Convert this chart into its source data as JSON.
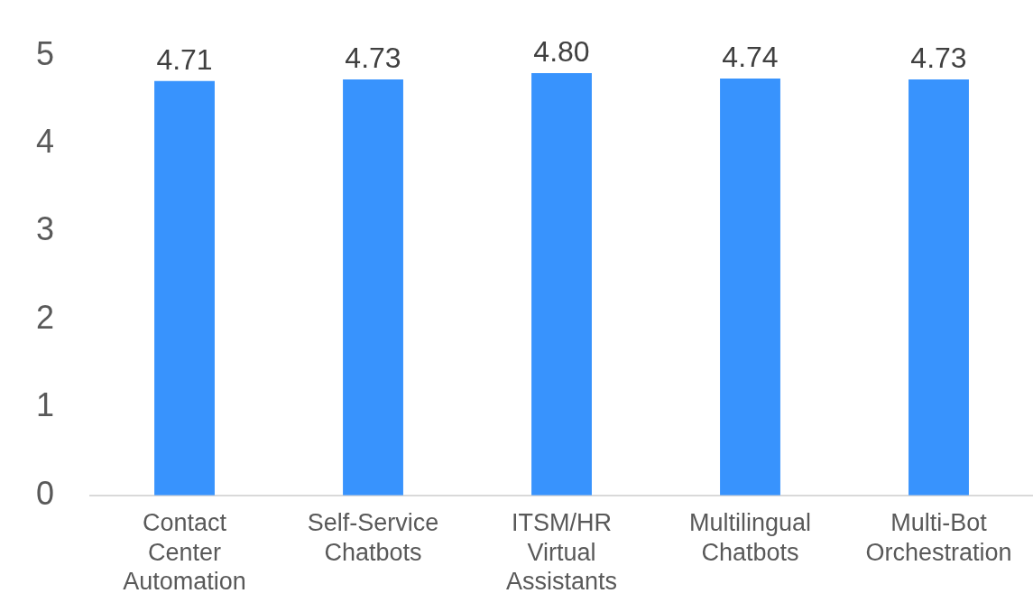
{
  "chart_data": {
    "type": "bar",
    "categories": [
      "Contact Center Automation",
      "Self-Service Chatbots",
      "ITSM/HR Virtual Assistants",
      "Multilingual Chatbots",
      "Multi-Bot Orchestration"
    ],
    "values": [
      4.71,
      4.73,
      4.8,
      4.74,
      4.73
    ],
    "color": "#3893fd",
    "ylim": [
      0,
      5
    ],
    "yticks": [
      0,
      1,
      2,
      3,
      4,
      5
    ],
    "value_labels": [
      "4.71",
      "4.73",
      "4.80",
      "4.74",
      "4.73"
    ],
    "grid": false,
    "legend": false
  }
}
